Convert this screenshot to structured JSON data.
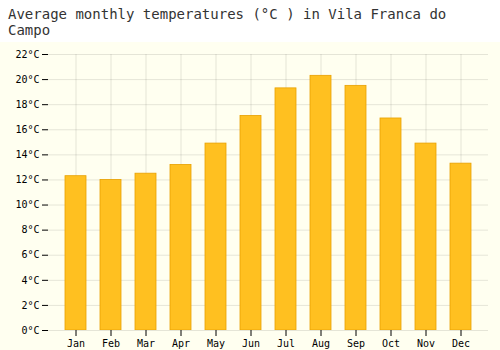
{
  "chart_data": {
    "type": "bar",
    "title": "Average monthly temperatures (°C ) in Vila Franca do Campo",
    "categories": [
      "Jan",
      "Feb",
      "Mar",
      "Apr",
      "May",
      "Jun",
      "Jul",
      "Aug",
      "Sep",
      "Oct",
      "Nov",
      "Dec"
    ],
    "values": [
      12.3,
      12.0,
      12.5,
      13.2,
      14.9,
      17.1,
      19.3,
      20.3,
      19.5,
      16.9,
      14.9,
      13.3
    ],
    "color": "#FFC020",
    "ylim": [
      0,
      22
    ],
    "yticks": [
      {
        "value": 0,
        "label": "0°C"
      },
      {
        "value": 2,
        "label": "2°C"
      },
      {
        "value": 4,
        "label": "4°C"
      },
      {
        "value": 6,
        "label": "6°C"
      },
      {
        "value": 8,
        "label": "8°C"
      },
      {
        "value": 10,
        "label": "10°C"
      },
      {
        "value": 12,
        "label": "12°C"
      },
      {
        "value": 14,
        "label": "14°C"
      },
      {
        "value": 16,
        "label": "16°C"
      },
      {
        "value": 18,
        "label": "18°C"
      },
      {
        "value": 20,
        "label": "20°C"
      },
      {
        "value": 22,
        "label": "22°C"
      }
    ],
    "grid": true
  }
}
